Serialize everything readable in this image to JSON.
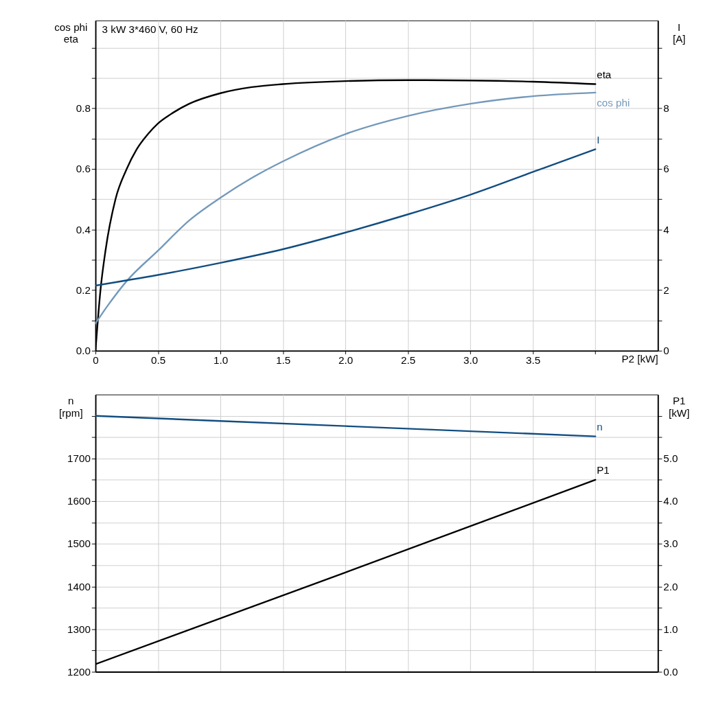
{
  "chart_data": [
    {
      "type": "line",
      "title": "3 kW   3*460 V, 60 Hz",
      "xlabel": "P2 [kW]",
      "ylabel": "cos phi\neta",
      "y2label": "I\n[A]",
      "grid": true,
      "xlim": [
        0,
        4.5
      ],
      "xticks": [
        0,
        0.5,
        {
          "value": 1,
          "label": "1.0"
        },
        1.5,
        {
          "value": 2,
          "label": "2.0"
        },
        2.5,
        {
          "value": 3,
          "label": "3.0"
        },
        3.5,
        {
          "value": 4,
          "label": null
        }
      ],
      "ylim": [
        0,
        1.09
      ],
      "yticks": [
        {
          "value": 0,
          "label": "0.0"
        },
        {
          "value": 0.1,
          "label": null
        },
        0.2,
        {
          "value": 0.3,
          "label": null
        },
        0.4,
        {
          "value": 0.5,
          "label": null
        },
        0.6,
        {
          "value": 0.7,
          "label": null
        },
        0.8,
        {
          "value": 0.9,
          "label": null
        },
        {
          "value": 1.0,
          "label": null
        }
      ],
      "y2lim": [
        0,
        10.9
      ],
      "y2ticks": [
        0,
        {
          "value": 1,
          "label": null
        },
        2,
        {
          "value": 3,
          "label": null
        },
        4,
        {
          "value": 5,
          "label": null
        },
        6,
        {
          "value": 7,
          "label": null
        },
        8,
        {
          "value": 9,
          "label": null
        },
        {
          "value": 10,
          "label": null
        }
      ],
      "series": [
        {
          "name": "eta",
          "color": "#000000",
          "x": [
            0,
            0.04,
            0.08,
            0.16,
            0.25,
            0.33,
            0.42,
            0.5,
            0.6,
            0.75,
            1.0,
            1.25,
            1.5,
            2.0,
            2.5,
            3.0,
            3.5,
            4.0
          ],
          "values": [
            0,
            0.2,
            0.33,
            0.5,
            0.6,
            0.665,
            0.715,
            0.75,
            0.78,
            0.815,
            0.85,
            0.87,
            0.88,
            0.89,
            0.893,
            0.892,
            0.888,
            0.88
          ]
        },
        {
          "name": "cos phi",
          "color": "#7399bb",
          "x": [
            0,
            0.1,
            0.25,
            0.5,
            0.75,
            1.0,
            1.25,
            1.5,
            2.0,
            2.5,
            3.0,
            3.5,
            4.0
          ],
          "values": [
            0.09,
            0.15,
            0.23,
            0.33,
            0.43,
            0.505,
            0.57,
            0.625,
            0.715,
            0.775,
            0.815,
            0.84,
            0.852
          ]
        },
        {
          "name": "I",
          "color": "#114d80",
          "axis": "y2",
          "x": [
            0,
            0.5,
            1.0,
            1.5,
            2.0,
            2.5,
            3.0,
            3.5,
            4.0
          ],
          "values": [
            2.15,
            2.5,
            2.9,
            3.35,
            3.9,
            4.5,
            5.15,
            5.9,
            6.65
          ]
        }
      ]
    },
    {
      "type": "line",
      "ylabel": "n\n[rpm]",
      "y2label": "P1\n[kW]",
      "grid": true,
      "tick_labels": "y",
      "xlim": [
        0,
        4.5
      ],
      "ylim": [
        1200,
        1850
      ],
      "yticks": [
        1200,
        {
          "value": 1250,
          "label": null
        },
        1300,
        {
          "value": 1350,
          "label": null
        },
        1400,
        {
          "value": 1450,
          "label": null
        },
        1500,
        {
          "value": 1550,
          "label": null
        },
        1600,
        {
          "value": 1650,
          "label": null
        },
        1700,
        {
          "value": 1750,
          "label": null
        },
        {
          "value": 1800,
          "label": null
        }
      ],
      "y2lim": [
        0,
        6.5
      ],
      "y2ticks": [
        {
          "value": 0,
          "label": "0.0"
        },
        {
          "value": 0.5,
          "label": null
        },
        {
          "value": 1,
          "label": "1.0"
        },
        {
          "value": 1.5,
          "label": null
        },
        {
          "value": 2,
          "label": "2.0"
        },
        {
          "value": 2.5,
          "label": null
        },
        {
          "value": 3,
          "label": "3.0"
        },
        {
          "value": 3.5,
          "label": null
        },
        {
          "value": 4,
          "label": "4.0"
        },
        {
          "value": 4.5,
          "label": null
        },
        {
          "value": 5,
          "label": "5.0"
        },
        {
          "value": 5.5,
          "label": null
        },
        {
          "value": 6,
          "label": null
        }
      ],
      "series": [
        {
          "name": "n",
          "color": "#114d80",
          "x": [
            0,
            2.0,
            4.0
          ],
          "values": [
            1800,
            1776,
            1752
          ]
        },
        {
          "name": "P1",
          "color": "#000000",
          "axis": "y2",
          "x": [
            0,
            2.0,
            4.0
          ],
          "values": [
            0.18,
            2.33,
            4.5
          ]
        }
      ]
    }
  ]
}
